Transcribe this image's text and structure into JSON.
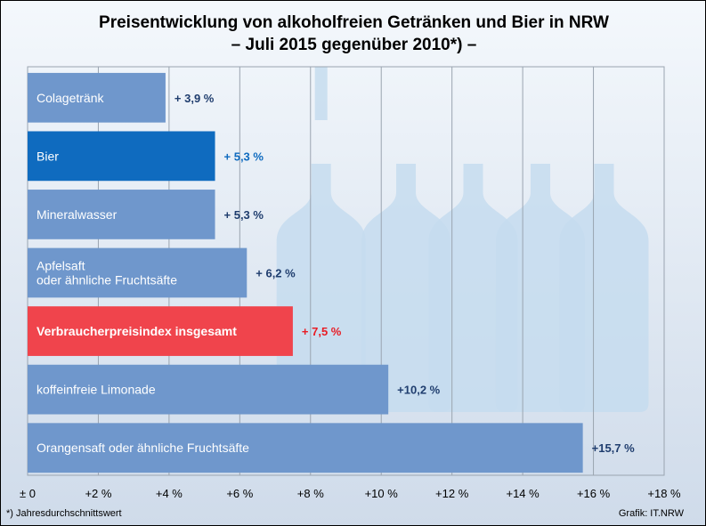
{
  "title_line1": "Preisentwicklung von alkoholfreien Getränken und Bier in NRW",
  "title_line2": "– Juli 2015 gegenüber 2010*) –",
  "footnote": "*) Jahresdurchschnittswert",
  "source": "Grafik: IT.NRW",
  "colors": {
    "default": "#6f97cc",
    "beer": "#0f6bbf",
    "cpi": "#f0444c",
    "label_default": "#1f3d6e",
    "label_beer": "#0f6bbf",
    "label_cpi": "#e81c24"
  },
  "chart_data": {
    "type": "bar",
    "orientation": "horizontal",
    "categories": [
      "Colagetränk",
      "Bier",
      "Mineralwasser",
      "Apfelsaft\noder ähnliche Fruchtsäfte",
      "Verbraucherpreisindex insgesamt",
      "koffeinfreie Limonade",
      "Orangensaft oder ähnliche Fruchtsäfte"
    ],
    "values": [
      3.9,
      5.3,
      5.3,
      6.2,
      7.5,
      10.2,
      15.7
    ],
    "value_labels": [
      "+ 3,9 %",
      "+ 5,3 %",
      "+ 5,3 %",
      "+ 6,2 %",
      "+ 7,5 %",
      "+10,2 %",
      "+15,7 %"
    ],
    "highlight": [
      "default",
      "beer",
      "default",
      "default",
      "cpi",
      "default",
      "default"
    ],
    "xlim": [
      0,
      18
    ],
    "x_ticks": [
      0,
      2,
      4,
      6,
      8,
      10,
      12,
      14,
      16,
      18
    ],
    "x_tick_labels": [
      "± 0",
      "+2 %",
      "+4 %",
      "+6 %",
      "+8 %",
      "+10 %",
      "+12 %",
      "+14 %",
      "+16 %",
      "+18 %"
    ],
    "grid": true
  }
}
